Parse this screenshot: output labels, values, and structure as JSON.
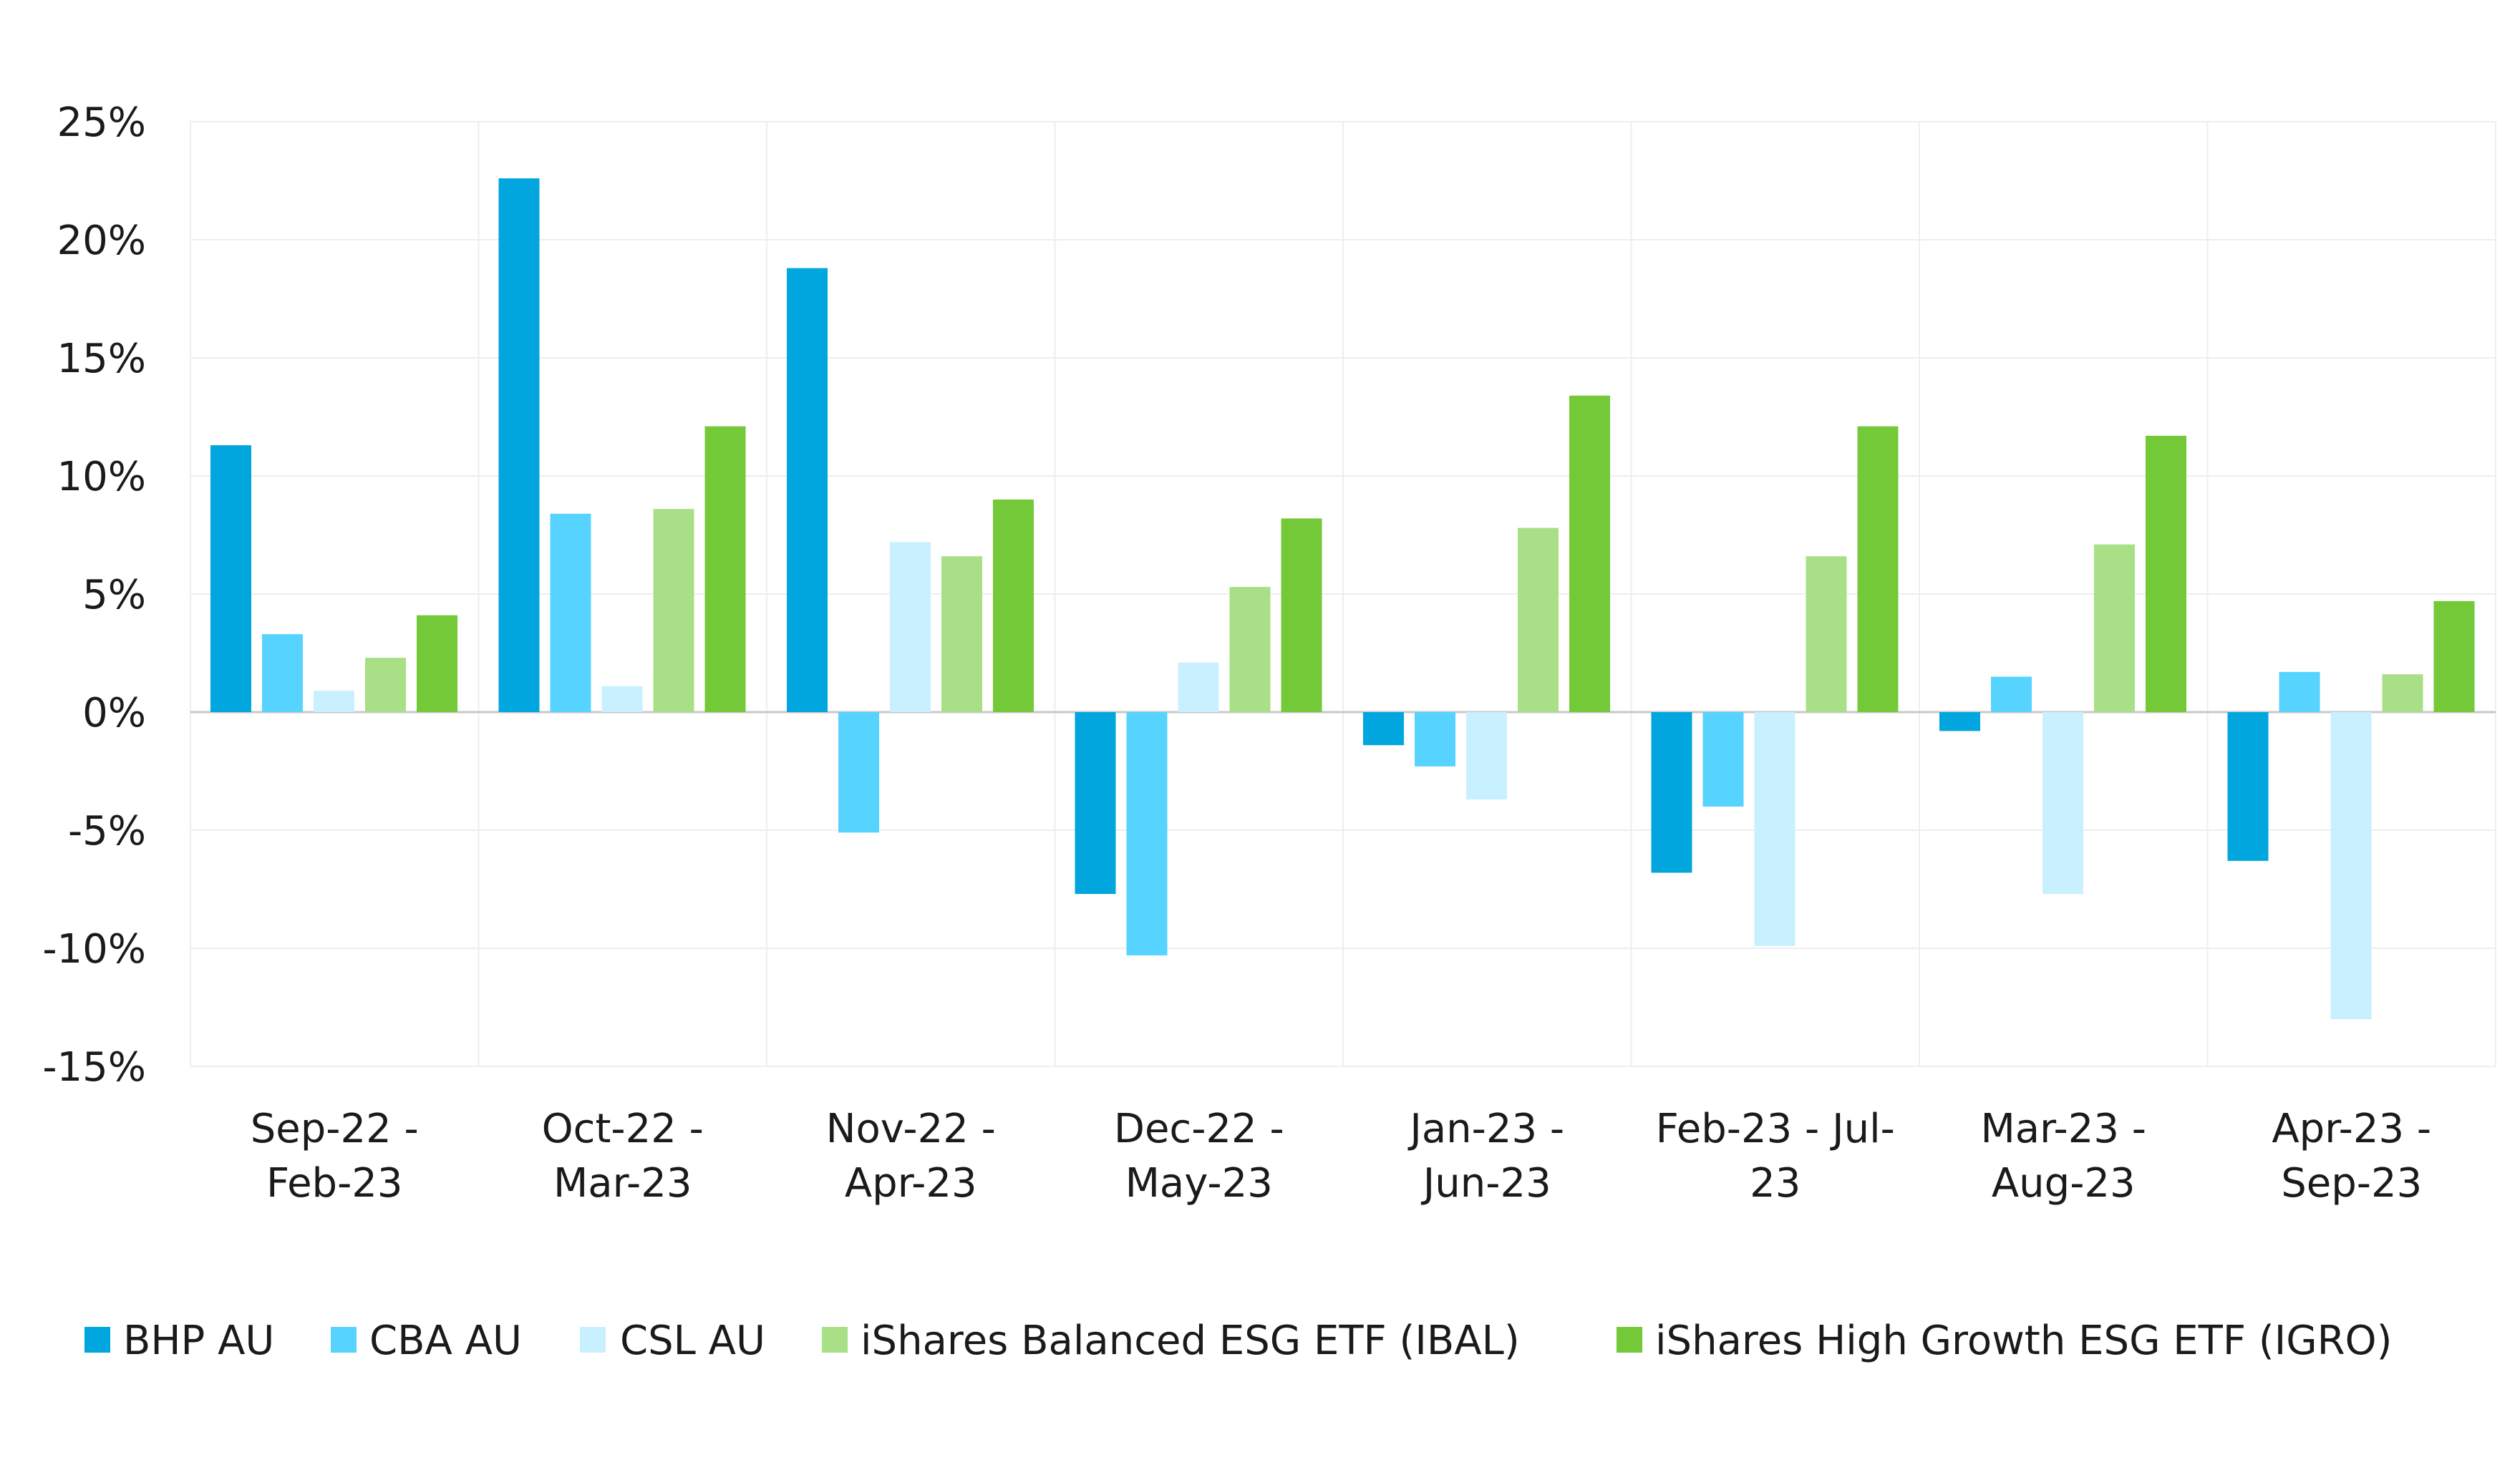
{
  "chart_data": {
    "type": "bar",
    "categories": [
      [
        "Sep-22 -",
        "Feb-23"
      ],
      [
        "Oct-22 -",
        "Mar-23"
      ],
      [
        "Nov-22 -",
        "Apr-23"
      ],
      [
        "Dec-22 -",
        "May-23"
      ],
      [
        "Jan-23 -",
        "Jun-23"
      ],
      [
        "Feb-23 - Jul-",
        "23"
      ],
      [
        "Mar-23 -",
        "Aug-23"
      ],
      [
        "Apr-23 -",
        "Sep-23"
      ]
    ],
    "series": [
      {
        "name": "BHP AU",
        "color": "#00a6dd",
        "values": [
          11.3,
          22.6,
          18.8,
          -7.7,
          -1.4,
          -6.8,
          -0.8,
          -6.3
        ]
      },
      {
        "name": "CBA AU",
        "color": "#57d3ff",
        "values": [
          3.3,
          8.4,
          -5.1,
          -10.3,
          -2.3,
          -4.0,
          1.5,
          1.7
        ]
      },
      {
        "name": "CSL AU",
        "color": "#c9f0ff",
        "values": [
          0.9,
          1.1,
          7.2,
          2.1,
          -3.7,
          -9.9,
          -7.7,
          -13.0
        ]
      },
      {
        "name": "iShares Balanced ESG ETF (IBAL)",
        "color": "#a8df87",
        "values": [
          2.3,
          8.6,
          6.6,
          5.3,
          7.8,
          6.6,
          7.1,
          1.6
        ]
      },
      {
        "name": "iShares High Growth ESG ETF (IGRO)",
        "color": "#73c937",
        "values": [
          4.1,
          12.1,
          9.0,
          8.2,
          13.4,
          12.1,
          11.7,
          4.7
        ]
      }
    ],
    "yticks": [
      "25%",
      "20%",
      "15%",
      "10%",
      "5%",
      "0%",
      "-5%",
      "-10%",
      "-15%"
    ],
    "ylim": [
      -15,
      25
    ],
    "grid": true,
    "legend_position": "bottom",
    "title": "",
    "xlabel": "",
    "ylabel": ""
  }
}
